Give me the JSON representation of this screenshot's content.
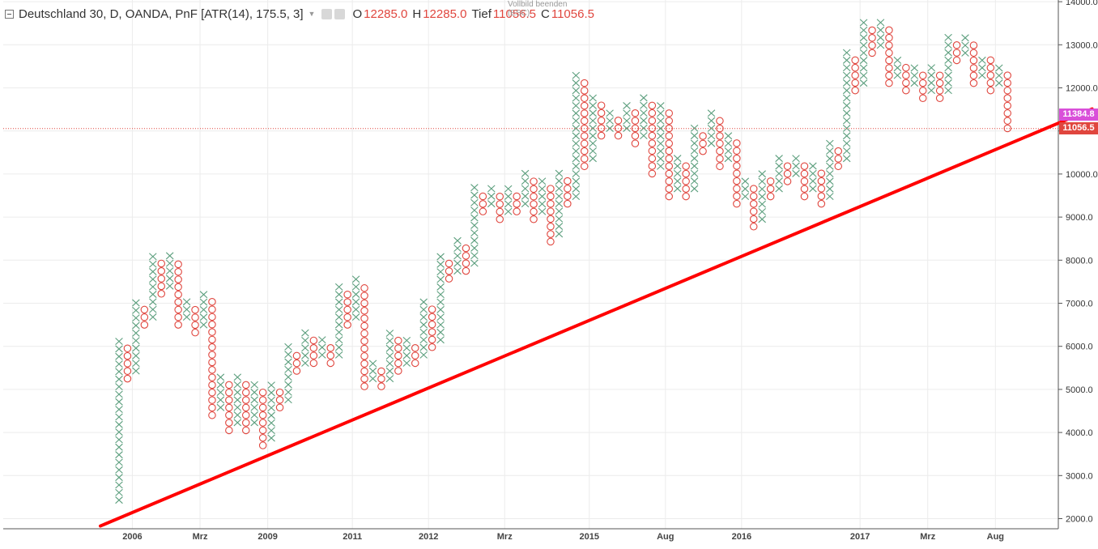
{
  "header": {
    "title": "Deutschland 30, D, OANDA, PnF [ATR(14), 175.5, 3]",
    "o_label": "O",
    "o_value": "12285.0",
    "h_label": "H",
    "h_value": "12285.0",
    "t_label": "Tief",
    "t_value": "11056.5",
    "c_label": "C",
    "c_value": "11056.5",
    "tooltip_line1": "Vollbild beenden",
    "tooltip_line2": "(ESC)"
  },
  "price_tags": {
    "upper": "11384.8",
    "current": "11056.5"
  },
  "colors": {
    "x_box": "#5b9e7d",
    "o_box": "#e0463e",
    "trendline": "#ff0000",
    "tag_upper": "#d94fd9",
    "tag_current": "#e0463e",
    "grid": "#ececec"
  },
  "chart_data": {
    "type": "point-and-figure",
    "title": "Deutschland 30, D, OANDA, PnF [ATR(14), 175.5, 3]",
    "box_size": 175.5,
    "reversal": 3,
    "ylim": [
      1850,
      14100
    ],
    "y_ticks": [
      "2000.0",
      "3000.0",
      "4000.0",
      "5000.0",
      "6000.0",
      "7000.0",
      "8000.0",
      "9000.0",
      "10000.0",
      "11000.0",
      "12000.0",
      "13000.0",
      "14000.0"
    ],
    "x_ticks": [
      {
        "label": "2006",
        "col": 1
      },
      {
        "label": "Mrz",
        "col": 9
      },
      {
        "label": "2009",
        "col": 17
      },
      {
        "label": "2011",
        "col": 27
      },
      {
        "label": "2012",
        "col": 36
      },
      {
        "label": "Mrz",
        "col": 45
      },
      {
        "label": "2015",
        "col": 55
      },
      {
        "label": "Aug",
        "col": 64
      },
      {
        "label": "2016",
        "col": 73
      },
      {
        "label": "2017",
        "col": 87
      },
      {
        "label": "Mrz",
        "col": 95
      },
      {
        "label": "Aug",
        "col": 103
      }
    ],
    "columns": [
      [
        "X",
        2430,
        6150
      ],
      [
        "O",
        5250,
        5980
      ],
      [
        "X",
        5430,
        7030
      ],
      [
        "O",
        6500,
        6860
      ],
      [
        "X",
        6680,
        8080
      ],
      [
        "O",
        7220,
        7900
      ],
      [
        "X",
        7400,
        8080
      ],
      [
        "O",
        6500,
        7900
      ],
      [
        "X",
        6680,
        7030
      ],
      [
        "O",
        6320,
        6860
      ],
      [
        "X",
        6500,
        7220
      ],
      [
        "O",
        4400,
        7030
      ],
      [
        "X",
        4580,
        5250
      ],
      [
        "O",
        4050,
        5070
      ],
      [
        "X",
        4230,
        5250
      ],
      [
        "O",
        4050,
        5070
      ],
      [
        "X",
        4230,
        5070
      ],
      [
        "O",
        3700,
        4890
      ],
      [
        "X",
        3870,
        5070
      ],
      [
        "O",
        4580,
        4890
      ],
      [
        "X",
        4760,
        5980
      ],
      [
        "O",
        5430,
        5800
      ],
      [
        "X",
        5610,
        6320
      ],
      [
        "O",
        5610,
        6150
      ],
      [
        "X",
        5800,
        6150
      ],
      [
        "O",
        5610,
        5980
      ],
      [
        "X",
        5800,
        7400
      ],
      [
        "O",
        6500,
        7220
      ],
      [
        "X",
        6680,
        7570
      ],
      [
        "O",
        5070,
        7400
      ],
      [
        "X",
        5250,
        5610
      ],
      [
        "O",
        5070,
        5430
      ],
      [
        "X",
        5250,
        6320
      ],
      [
        "O",
        5430,
        6150
      ],
      [
        "X",
        5610,
        6150
      ],
      [
        "O",
        5610,
        5980
      ],
      [
        "X",
        5800,
        7030
      ],
      [
        "O",
        5980,
        6860
      ],
      [
        "X",
        6150,
        8080
      ],
      [
        "O",
        7570,
        7900
      ],
      [
        "X",
        7750,
        8430
      ],
      [
        "O",
        7750,
        8260
      ],
      [
        "X",
        7930,
        9660
      ],
      [
        "O",
        9130,
        9480
      ],
      [
        "X",
        9310,
        9660
      ],
      [
        "O",
        8950,
        9480
      ],
      [
        "X",
        9130,
        9660
      ],
      [
        "O",
        9130,
        9480
      ],
      [
        "X",
        9310,
        10010
      ],
      [
        "O",
        8950,
        9830
      ],
      [
        "X",
        9130,
        9830
      ],
      [
        "O",
        8430,
        9660
      ],
      [
        "X",
        8610,
        10010
      ],
      [
        "O",
        9310,
        9830
      ],
      [
        "X",
        9480,
        12290
      ],
      [
        "O",
        10180,
        12110
      ],
      [
        "X",
        10360,
        11760
      ],
      [
        "O",
        10890,
        11580
      ],
      [
        "X",
        11060,
        11410
      ],
      [
        "O",
        10890,
        11230
      ],
      [
        "X",
        11060,
        11580
      ],
      [
        "O",
        10710,
        11410
      ],
      [
        "X",
        10890,
        11760
      ],
      [
        "O",
        10010,
        11580
      ],
      [
        "X",
        10180,
        11580
      ],
      [
        "O",
        9480,
        11410
      ],
      [
        "X",
        9660,
        10360
      ],
      [
        "O",
        9480,
        10180
      ],
      [
        "X",
        9660,
        11060
      ],
      [
        "O",
        10530,
        10890
      ],
      [
        "X",
        10710,
        11410
      ],
      [
        "O",
        10180,
        11230
      ],
      [
        "X",
        10360,
        10890
      ],
      [
        "O",
        9310,
        10710
      ],
      [
        "X",
        9480,
        9830
      ],
      [
        "O",
        8780,
        9660
      ],
      [
        "X",
        8950,
        10010
      ],
      [
        "O",
        9480,
        9830
      ],
      [
        "X",
        9660,
        10360
      ],
      [
        "O",
        9830,
        10180
      ],
      [
        "X",
        10010,
        10360
      ],
      [
        "O",
        9480,
        10180
      ],
      [
        "X",
        9660,
        10180
      ],
      [
        "O",
        9310,
        10010
      ],
      [
        "X",
        9480,
        10710
      ],
      [
        "O",
        10180,
        10530
      ],
      [
        "X",
        10360,
        12810
      ],
      [
        "O",
        11940,
        12640
      ],
      [
        "X",
        12110,
        13520
      ],
      [
        "O",
        12810,
        13340
      ],
      [
        "X",
        12990,
        13520
      ],
      [
        "O",
        12110,
        13340
      ],
      [
        "X",
        12290,
        12640
      ],
      [
        "O",
        11940,
        12460
      ],
      [
        "X",
        12110,
        12460
      ],
      [
        "O",
        11760,
        12290
      ],
      [
        "X",
        11940,
        12460
      ],
      [
        "O",
        11760,
        12290
      ],
      [
        "X",
        11940,
        13170
      ],
      [
        "O",
        12640,
        12990
      ],
      [
        "X",
        12810,
        13170
      ],
      [
        "O",
        12110,
        12990
      ],
      [
        "X",
        12290,
        12640
      ],
      [
        "O",
        11940,
        12640
      ],
      [
        "X",
        12110,
        12460
      ],
      [
        "O",
        11060,
        12290
      ]
    ],
    "trendline": {
      "x1_col": -2.2,
      "y1": 1830,
      "x2_col": 115,
      "y2": 11510
    },
    "horizontal_level": 11056.5
  }
}
